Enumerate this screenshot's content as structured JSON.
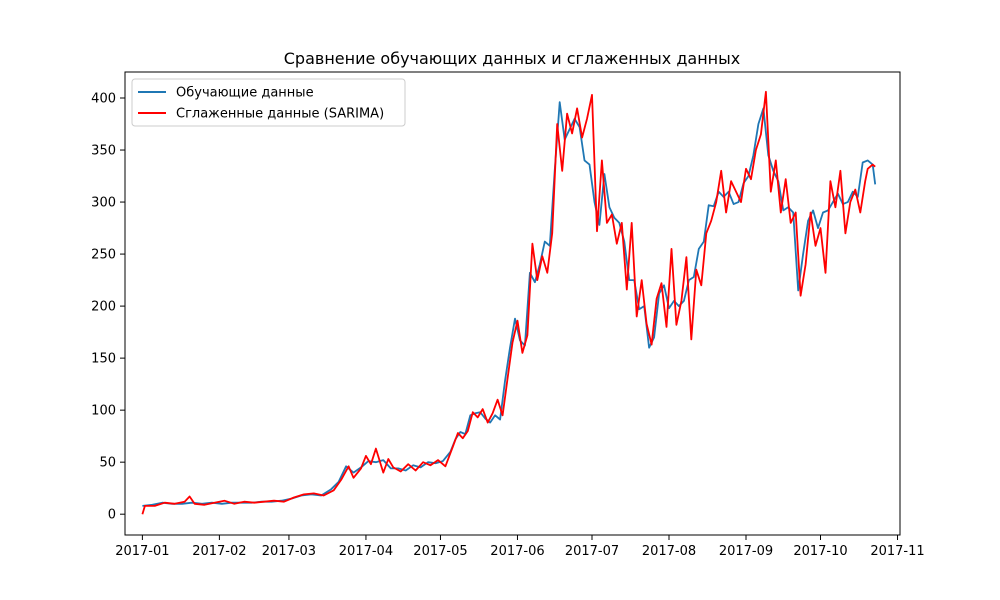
{
  "chart_data": {
    "type": "line",
    "title": "Сравнение обучающих данных и сглаженных данных",
    "xlabel": "",
    "ylabel": "",
    "x_axis_type": "date",
    "xlim": [
      "2016-12-25",
      "2017-11-02"
    ],
    "ylim": [
      -20,
      425
    ],
    "x_ticks": [
      "2017-01",
      "2017-02",
      "2017-03",
      "2017-04",
      "2017-05",
      "2017-06",
      "2017-07",
      "2017-08",
      "2017-09",
      "2017-10",
      "2017-11"
    ],
    "y_ticks": [
      0,
      50,
      100,
      150,
      200,
      250,
      300,
      350,
      400
    ],
    "grid": false,
    "legend_position": "top-left",
    "series": [
      {
        "name": "Обучающие данные",
        "color": "#1f77b4",
        "points": [
          [
            "2017-01-01",
            8
          ],
          [
            "2017-01-05",
            9
          ],
          [
            "2017-01-09",
            11
          ],
          [
            "2017-01-13",
            10
          ],
          [
            "2017-01-17",
            10
          ],
          [
            "2017-01-21",
            11
          ],
          [
            "2017-01-25",
            10
          ],
          [
            "2017-01-29",
            11
          ],
          [
            "2017-02-02",
            10
          ],
          [
            "2017-02-06",
            11
          ],
          [
            "2017-02-10",
            11
          ],
          [
            "2017-02-14",
            11
          ],
          [
            "2017-02-18",
            12
          ],
          [
            "2017-02-22",
            12
          ],
          [
            "2017-02-26",
            13
          ],
          [
            "2017-03-02",
            15
          ],
          [
            "2017-03-06",
            18
          ],
          [
            "2017-03-10",
            19
          ],
          [
            "2017-03-14",
            18
          ],
          [
            "2017-03-18",
            24
          ],
          [
            "2017-03-21",
            31
          ],
          [
            "2017-03-24",
            46
          ],
          [
            "2017-03-27",
            40
          ],
          [
            "2017-03-30",
            45
          ],
          [
            "2017-04-02",
            51
          ],
          [
            "2017-04-05",
            50
          ],
          [
            "2017-04-08",
            52
          ],
          [
            "2017-04-11",
            44
          ],
          [
            "2017-04-14",
            44
          ],
          [
            "2017-04-17",
            42
          ],
          [
            "2017-04-20",
            47
          ],
          [
            "2017-04-23",
            45
          ],
          [
            "2017-04-26",
            50
          ],
          [
            "2017-04-29",
            49
          ],
          [
            "2017-05-02",
            51
          ],
          [
            "2017-05-05",
            60
          ],
          [
            "2017-05-07",
            72
          ],
          [
            "2017-05-09",
            79
          ],
          [
            "2017-05-11",
            77
          ],
          [
            "2017-05-13",
            95
          ],
          [
            "2017-05-15",
            97
          ],
          [
            "2017-05-17",
            98
          ],
          [
            "2017-05-19",
            92
          ],
          [
            "2017-05-21",
            88
          ],
          [
            "2017-05-23",
            95
          ],
          [
            "2017-05-25",
            91
          ],
          [
            "2017-05-27",
            128
          ],
          [
            "2017-05-29",
            160
          ],
          [
            "2017-05-31",
            188
          ],
          [
            "2017-06-02",
            167
          ],
          [
            "2017-06-04",
            162
          ],
          [
            "2017-06-06",
            232
          ],
          [
            "2017-06-08",
            223
          ],
          [
            "2017-06-10",
            240
          ],
          [
            "2017-06-12",
            262
          ],
          [
            "2017-06-14",
            258
          ],
          [
            "2017-06-16",
            330
          ],
          [
            "2017-06-18",
            396
          ],
          [
            "2017-06-20",
            360
          ],
          [
            "2017-06-22",
            370
          ],
          [
            "2017-06-24",
            380
          ],
          [
            "2017-06-26",
            372
          ],
          [
            "2017-06-28",
            340
          ],
          [
            "2017-06-30",
            336
          ],
          [
            "2017-07-02",
            300
          ],
          [
            "2017-07-04",
            278
          ],
          [
            "2017-07-06",
            327
          ],
          [
            "2017-07-08",
            295
          ],
          [
            "2017-07-10",
            285
          ],
          [
            "2017-07-12",
            280
          ],
          [
            "2017-07-14",
            262
          ],
          [
            "2017-07-16",
            225
          ],
          [
            "2017-07-18",
            225
          ],
          [
            "2017-07-20",
            197
          ],
          [
            "2017-07-22",
            200
          ],
          [
            "2017-07-24",
            160
          ],
          [
            "2017-07-26",
            170
          ],
          [
            "2017-07-28",
            212
          ],
          [
            "2017-07-30",
            220
          ],
          [
            "2017-08-01",
            198
          ],
          [
            "2017-08-03",
            205
          ],
          [
            "2017-08-05",
            200
          ],
          [
            "2017-08-07",
            205
          ],
          [
            "2017-08-09",
            225
          ],
          [
            "2017-08-11",
            228
          ],
          [
            "2017-08-13",
            255
          ],
          [
            "2017-08-15",
            262
          ],
          [
            "2017-08-17",
            297
          ],
          [
            "2017-08-19",
            296
          ],
          [
            "2017-08-21",
            310
          ],
          [
            "2017-08-23",
            305
          ],
          [
            "2017-08-25",
            310
          ],
          [
            "2017-08-27",
            298
          ],
          [
            "2017-08-29",
            300
          ],
          [
            "2017-08-31",
            318
          ],
          [
            "2017-09-02",
            325
          ],
          [
            "2017-09-04",
            345
          ],
          [
            "2017-09-06",
            375
          ],
          [
            "2017-09-08",
            390
          ],
          [
            "2017-09-10",
            345
          ],
          [
            "2017-09-12",
            330
          ],
          [
            "2017-09-14",
            320
          ],
          [
            "2017-09-16",
            292
          ],
          [
            "2017-09-18",
            295
          ],
          [
            "2017-09-20",
            290
          ],
          [
            "2017-09-22",
            215
          ],
          [
            "2017-09-24",
            250
          ],
          [
            "2017-09-26",
            282
          ],
          [
            "2017-09-28",
            292
          ],
          [
            "2017-09-30",
            275
          ],
          [
            "2017-10-02",
            290
          ],
          [
            "2017-10-04",
            292
          ],
          [
            "2017-10-06",
            300
          ],
          [
            "2017-10-08",
            308
          ],
          [
            "2017-10-10",
            298
          ],
          [
            "2017-10-12",
            300
          ],
          [
            "2017-10-14",
            310
          ],
          [
            "2017-10-16",
            305
          ],
          [
            "2017-10-18",
            338
          ],
          [
            "2017-10-20",
            340
          ],
          [
            "2017-10-22",
            336
          ],
          [
            "2017-10-23",
            317
          ]
        ]
      },
      {
        "name": "Сглаженные данные (SARIMA)",
        "color": "#ff0000",
        "points": [
          [
            "2017-01-01",
            0
          ],
          [
            "2017-01-02",
            8
          ],
          [
            "2017-01-06",
            8
          ],
          [
            "2017-01-10",
            11
          ],
          [
            "2017-01-14",
            10
          ],
          [
            "2017-01-18",
            12
          ],
          [
            "2017-01-20",
            17
          ],
          [
            "2017-01-22",
            10
          ],
          [
            "2017-01-26",
            9
          ],
          [
            "2017-01-30",
            11
          ],
          [
            "2017-02-03",
            13
          ],
          [
            "2017-02-07",
            10
          ],
          [
            "2017-02-11",
            12
          ],
          [
            "2017-02-15",
            11
          ],
          [
            "2017-02-19",
            12
          ],
          [
            "2017-02-23",
            13
          ],
          [
            "2017-02-27",
            12
          ],
          [
            "2017-03-03",
            16
          ],
          [
            "2017-03-07",
            19
          ],
          [
            "2017-03-11",
            20
          ],
          [
            "2017-03-15",
            18
          ],
          [
            "2017-03-19",
            23
          ],
          [
            "2017-03-22",
            33
          ],
          [
            "2017-03-25",
            46
          ],
          [
            "2017-03-27",
            35
          ],
          [
            "2017-03-30",
            44
          ],
          [
            "2017-04-01",
            56
          ],
          [
            "2017-04-03",
            48
          ],
          [
            "2017-04-05",
            63
          ],
          [
            "2017-04-08",
            40
          ],
          [
            "2017-04-10",
            53
          ],
          [
            "2017-04-12",
            45
          ],
          [
            "2017-04-15",
            41
          ],
          [
            "2017-04-18",
            48
          ],
          [
            "2017-04-21",
            42
          ],
          [
            "2017-04-24",
            50
          ],
          [
            "2017-04-27",
            47
          ],
          [
            "2017-04-30",
            52
          ],
          [
            "2017-05-03",
            46
          ],
          [
            "2017-05-06",
            65
          ],
          [
            "2017-05-08",
            78
          ],
          [
            "2017-05-10",
            73
          ],
          [
            "2017-05-12",
            80
          ],
          [
            "2017-05-14",
            98
          ],
          [
            "2017-05-16",
            93
          ],
          [
            "2017-05-18",
            101
          ],
          [
            "2017-05-20",
            88
          ],
          [
            "2017-05-22",
            97
          ],
          [
            "2017-05-24",
            110
          ],
          [
            "2017-05-26",
            95
          ],
          [
            "2017-05-28",
            130
          ],
          [
            "2017-05-30",
            165
          ],
          [
            "2017-06-01",
            186
          ],
          [
            "2017-06-03",
            155
          ],
          [
            "2017-06-05",
            172
          ],
          [
            "2017-06-07",
            260
          ],
          [
            "2017-06-09",
            225
          ],
          [
            "2017-06-11",
            248
          ],
          [
            "2017-06-13",
            232
          ],
          [
            "2017-06-15",
            270
          ],
          [
            "2017-06-17",
            375
          ],
          [
            "2017-06-19",
            330
          ],
          [
            "2017-06-21",
            385
          ],
          [
            "2017-06-23",
            366
          ],
          [
            "2017-06-25",
            390
          ],
          [
            "2017-06-27",
            362
          ],
          [
            "2017-06-29",
            380
          ],
          [
            "2017-07-01",
            403
          ],
          [
            "2017-07-03",
            272
          ],
          [
            "2017-07-05",
            340
          ],
          [
            "2017-07-07",
            280
          ],
          [
            "2017-07-09",
            288
          ],
          [
            "2017-07-11",
            260
          ],
          [
            "2017-07-13",
            280
          ],
          [
            "2017-07-15",
            216
          ],
          [
            "2017-07-17",
            280
          ],
          [
            "2017-07-19",
            190
          ],
          [
            "2017-07-21",
            225
          ],
          [
            "2017-07-23",
            183
          ],
          [
            "2017-07-25",
            163
          ],
          [
            "2017-07-27",
            207
          ],
          [
            "2017-07-29",
            222
          ],
          [
            "2017-07-31",
            180
          ],
          [
            "2017-08-02",
            255
          ],
          [
            "2017-08-04",
            182
          ],
          [
            "2017-08-06",
            205
          ],
          [
            "2017-08-08",
            247
          ],
          [
            "2017-08-10",
            168
          ],
          [
            "2017-08-12",
            235
          ],
          [
            "2017-08-14",
            220
          ],
          [
            "2017-08-16",
            270
          ],
          [
            "2017-08-18",
            282
          ],
          [
            "2017-08-20",
            300
          ],
          [
            "2017-08-22",
            330
          ],
          [
            "2017-08-24",
            290
          ],
          [
            "2017-08-26",
            320
          ],
          [
            "2017-08-28",
            310
          ],
          [
            "2017-08-30",
            300
          ],
          [
            "2017-09-01",
            332
          ],
          [
            "2017-09-03",
            322
          ],
          [
            "2017-09-05",
            350
          ],
          [
            "2017-09-07",
            365
          ],
          [
            "2017-09-09",
            406
          ],
          [
            "2017-09-11",
            310
          ],
          [
            "2017-09-13",
            340
          ],
          [
            "2017-09-15",
            290
          ],
          [
            "2017-09-17",
            322
          ],
          [
            "2017-09-19",
            280
          ],
          [
            "2017-09-21",
            290
          ],
          [
            "2017-09-23",
            210
          ],
          [
            "2017-09-25",
            240
          ],
          [
            "2017-09-27",
            290
          ],
          [
            "2017-09-29",
            258
          ],
          [
            "2017-10-01",
            275
          ],
          [
            "2017-10-03",
            232
          ],
          [
            "2017-10-05",
            320
          ],
          [
            "2017-10-07",
            295
          ],
          [
            "2017-10-09",
            330
          ],
          [
            "2017-10-11",
            270
          ],
          [
            "2017-10-13",
            300
          ],
          [
            "2017-10-15",
            312
          ],
          [
            "2017-10-17",
            290
          ],
          [
            "2017-10-19",
            320
          ],
          [
            "2017-10-20",
            332
          ],
          [
            "2017-10-22",
            336
          ],
          [
            "2017-10-23",
            334
          ]
        ]
      }
    ]
  }
}
